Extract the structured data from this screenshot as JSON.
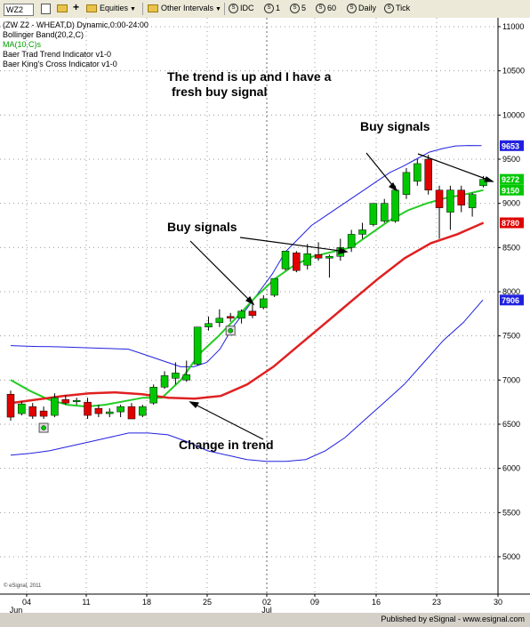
{
  "toolbar": {
    "symbol": "WZ2",
    "equities_label": "Equities",
    "other_intervals_label": "Other Intervals",
    "idc_label": "IDC",
    "i1_label": "1",
    "i5_label": "5",
    "i60_label": "60",
    "daily_label": "Daily",
    "tick_label": "Tick"
  },
  "legend": {
    "line1": "(ZW Z2 - WHEAT,D) Dynamic,0:00-24:00",
    "line2": "Bollinger Band(20,2,C)",
    "line3": "MA(10,C)s",
    "line4": "Baer Trad Trend Indicator v1-0",
    "line5": "Baer King's Cross Indicator v1-0"
  },
  "colors": {
    "up": "#00c800",
    "down": "#e00000",
    "ma_green": "#22cc22",
    "ma_red": "#e02020",
    "band": "#2020e0",
    "grid": "#9a9a9a",
    "legend_green": "#00a000",
    "label_blue": "#2020e0",
    "label_green": "#00c000",
    "label_red": "#e00000"
  },
  "annotations": {
    "trend_note_1": "The trend is up and I have a",
    "trend_note_2": "fresh buy signal",
    "buy_signals_top": "Buy signals",
    "buy_signals_mid": "Buy signals",
    "change_in_trend": "Change in trend"
  },
  "footer": {
    "copyright": "© eSignal, 2011",
    "published": "Published by eSignal - www.esignal.com"
  },
  "chart_data": {
    "type": "candlestick",
    "title": "(ZW Z2 - WHEAT,D) Dynamic,0:00-24:00",
    "ylim": [
      4600,
      11100
    ],
    "y_ticks": [
      5000,
      5500,
      6000,
      6500,
      7000,
      7500,
      8000,
      8500,
      9000,
      9500,
      10000,
      10500,
      11000
    ],
    "x_tick_labels": [
      "04",
      "11",
      "18",
      "25",
      "02",
      "09",
      "16",
      "23",
      "30"
    ],
    "month_labels": [
      "Jun",
      "Jul"
    ],
    "price_labels": [
      {
        "value": 9653,
        "color": "band"
      },
      {
        "value": 9272,
        "color": "up"
      },
      {
        "value": 9150,
        "color": "up"
      },
      {
        "value": 8780,
        "color": "down"
      },
      {
        "value": 7906,
        "color": "band"
      }
    ],
    "candles": [
      {
        "o": 6840,
        "h": 6880,
        "l": 6540,
        "c": 6580
      },
      {
        "o": 6620,
        "h": 6760,
        "l": 6600,
        "c": 6730
      },
      {
        "o": 6700,
        "h": 6740,
        "l": 6560,
        "c": 6590
      },
      {
        "o": 6650,
        "h": 6700,
        "l": 6560,
        "c": 6590
      },
      {
        "o": 6600,
        "h": 6850,
        "l": 6580,
        "c": 6800
      },
      {
        "o": 6780,
        "h": 6830,
        "l": 6720,
        "c": 6740
      },
      {
        "o": 6760,
        "h": 6800,
        "l": 6720,
        "c": 6770
      },
      {
        "o": 6750,
        "h": 6800,
        "l": 6560,
        "c": 6600
      },
      {
        "o": 6680,
        "h": 6720,
        "l": 6580,
        "c": 6620
      },
      {
        "o": 6620,
        "h": 6680,
        "l": 6580,
        "c": 6640
      },
      {
        "o": 6640,
        "h": 6720,
        "l": 6580,
        "c": 6700
      },
      {
        "o": 6700,
        "h": 6740,
        "l": 6560,
        "c": 6560
      },
      {
        "o": 6600,
        "h": 6720,
        "l": 6580,
        "c": 6700
      },
      {
        "o": 6740,
        "h": 6950,
        "l": 6720,
        "c": 6920
      },
      {
        "o": 6920,
        "h": 7100,
        "l": 6900,
        "c": 7050
      },
      {
        "o": 7020,
        "h": 7200,
        "l": 6950,
        "c": 7080
      },
      {
        "o": 7000,
        "h": 7220,
        "l": 6980,
        "c": 7060
      },
      {
        "o": 7180,
        "h": 7600,
        "l": 7160,
        "c": 7600
      },
      {
        "o": 7600,
        "h": 7720,
        "l": 7560,
        "c": 7640
      },
      {
        "o": 7650,
        "h": 7800,
        "l": 7600,
        "c": 7700
      },
      {
        "o": 7720,
        "h": 7760,
        "l": 7660,
        "c": 7700
      },
      {
        "o": 7700,
        "h": 7800,
        "l": 7640,
        "c": 7780
      },
      {
        "o": 7780,
        "h": 7860,
        "l": 7700,
        "c": 7730
      },
      {
        "o": 7820,
        "h": 7960,
        "l": 7800,
        "c": 7920
      },
      {
        "o": 7960,
        "h": 8150,
        "l": 7940,
        "c": 8150
      },
      {
        "o": 8260,
        "h": 8460,
        "l": 8240,
        "c": 8460
      },
      {
        "o": 8440,
        "h": 8460,
        "l": 8220,
        "c": 8240
      },
      {
        "o": 8300,
        "h": 8540,
        "l": 8250,
        "c": 8430
      },
      {
        "o": 8420,
        "h": 8560,
        "l": 8350,
        "c": 8380
      },
      {
        "o": 8380,
        "h": 8420,
        "l": 8160,
        "c": 8400
      },
      {
        "o": 8400,
        "h": 8600,
        "l": 8350,
        "c": 8500
      },
      {
        "o": 8500,
        "h": 8700,
        "l": 8450,
        "c": 8650
      },
      {
        "o": 8650,
        "h": 8780,
        "l": 8600,
        "c": 8700
      },
      {
        "o": 8760,
        "h": 9000,
        "l": 8740,
        "c": 9000
      },
      {
        "o": 8800,
        "h": 9050,
        "l": 8780,
        "c": 9000
      },
      {
        "o": 8800,
        "h": 9200,
        "l": 8780,
        "c": 9150
      },
      {
        "o": 9100,
        "h": 9400,
        "l": 9050,
        "c": 9350
      },
      {
        "o": 9250,
        "h": 9500,
        "l": 9200,
        "c": 9450
      },
      {
        "o": 9500,
        "h": 9550,
        "l": 9100,
        "c": 9150
      },
      {
        "o": 9150,
        "h": 9200,
        "l": 8600,
        "c": 8950
      },
      {
        "o": 8900,
        "h": 9200,
        "l": 8700,
        "c": 9150
      },
      {
        "o": 9150,
        "h": 9200,
        "l": 8900,
        "c": 8980
      },
      {
        "o": 8950,
        "h": 9120,
        "l": 8850,
        "c": 9100
      },
      {
        "o": 9200,
        "h": 9310,
        "l": 9180,
        "c": 9272
      }
    ],
    "band_upper": [
      7390,
      7385,
      7380,
      7378,
      7375,
      7370,
      7365,
      7360,
      7355,
      7350,
      7300,
      7250,
      7200,
      7150,
      7150,
      7200,
      7350,
      7600,
      7800,
      8000,
      8200,
      8450,
      8600,
      8750,
      8850,
      8950,
      9050,
      9150,
      9250,
      9350,
      9420,
      9500,
      9580,
      9620,
      9650,
      9655,
      9653
    ],
    "band_upper_start": 0,
    "band_upper_step": 1.19,
    "band_lower": [
      6150,
      6170,
      6200,
      6250,
      6300,
      6350,
      6400,
      6400,
      6380,
      6300,
      6200,
      6150,
      6100,
      6080,
      6080,
      6100,
      6200,
      6350,
      6550,
      6750,
      6950,
      7200,
      7450,
      7650,
      7906
    ],
    "band_lower_start": 0,
    "band_lower_step": 1.79,
    "ma_green": [
      7000,
      6880,
      6780,
      6720,
      6700,
      6720,
      6760,
      6800,
      6800,
      7000,
      7300,
      7500,
      7720,
      7950,
      8150,
      8300,
      8400,
      8450,
      8500,
      8650,
      8800,
      8920,
      9000,
      9060,
      9100,
      9150
    ],
    "ma_green_step": 1.72,
    "ma_red": [
      6740,
      6780,
      6820,
      6850,
      6860,
      6840,
      6800,
      6790,
      6820,
      6950,
      7150,
      7400,
      7650,
      7900,
      8150,
      8380,
      8550,
      8650,
      8780
    ],
    "ma_red_step": 2.39,
    "buy_markers": [
      3,
      20
    ]
  }
}
